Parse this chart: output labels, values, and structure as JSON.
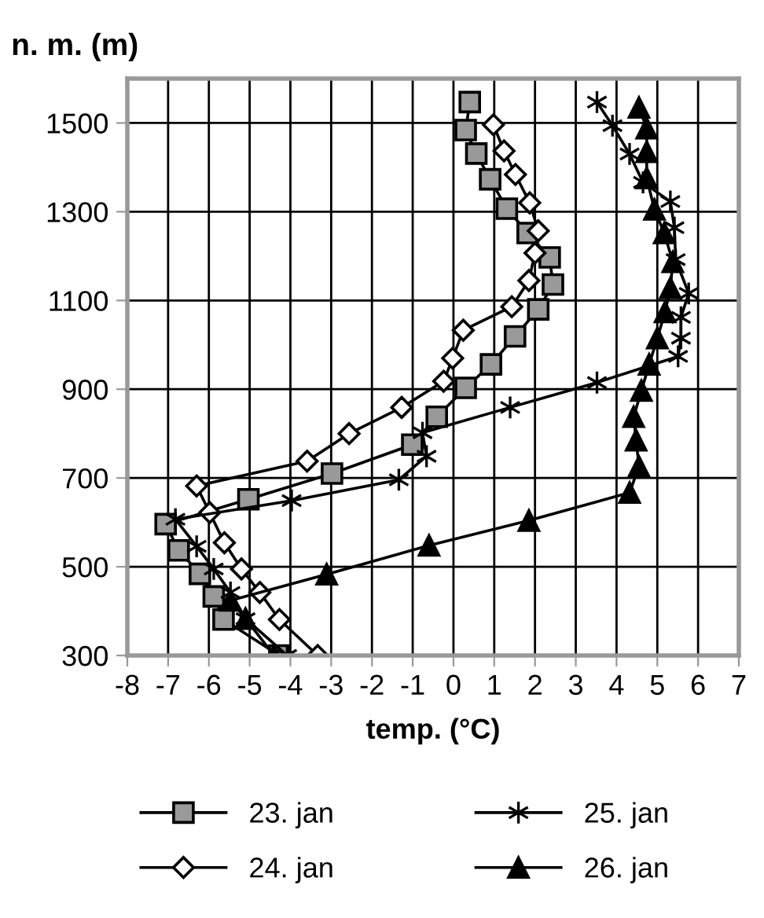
{
  "chart_data": {
    "type": "line",
    "xlabel": "temp. (°C)",
    "ylabel": "n. m. (m)",
    "xlim": [
      -8,
      7
    ],
    "xticks": [
      -8,
      -7,
      -6,
      -5,
      -4,
      -3,
      -2,
      -1,
      0,
      1,
      2,
      3,
      4,
      5,
      6,
      7
    ],
    "ylim": [
      300,
      1600
    ],
    "yticks": [
      300,
      500,
      700,
      900,
      1100,
      1300,
      1500
    ],
    "grid": true,
    "legend": "bottom",
    "series": [
      {
        "name": "23. jan",
        "color": "#999999",
        "marker": "square",
        "x": [
          0.4,
          0.3,
          0.56,
          0.9,
          1.31,
          1.82,
          2.36,
          2.44,
          2.08,
          1.51,
          0.92,
          0.3,
          -0.41,
          -1.01,
          -2.98,
          -5.03,
          -7.06,
          -6.74,
          -6.22,
          -5.88,
          -5.64,
          -4.27
        ],
        "values": [
          1547,
          1484,
          1431,
          1373,
          1307,
          1252,
          1197,
          1136,
          1080,
          1019,
          956,
          903,
          838,
          775,
          710,
          652,
          596,
          537,
          484,
          433,
          381,
          300
        ]
      },
      {
        "name": "24. jan",
        "color": "#ffffff",
        "marker": "diamond",
        "x": [
          0.98,
          1.24,
          1.52,
          1.87,
          2.08,
          2.0,
          1.85,
          1.43,
          0.24,
          -0.02,
          -0.24,
          -1.27,
          -2.56,
          -3.59,
          -6.3,
          -5.98,
          -5.62,
          -5.2,
          -4.75,
          -4.27,
          -3.33
        ],
        "values": [
          1496,
          1437,
          1384,
          1320,
          1257,
          1207,
          1145,
          1086,
          1033,
          970,
          918,
          859,
          800,
          738,
          682,
          622,
          554,
          495,
          442,
          381,
          300
        ]
      },
      {
        "name": "25. jan",
        "color": "#000000",
        "marker": "cross",
        "x": [
          3.52,
          3.9,
          4.32,
          4.65,
          5.32,
          5.42,
          5.45,
          5.77,
          5.58,
          5.58,
          5.51,
          3.52,
          1.39,
          -0.76,
          -0.66,
          -1.34,
          -3.97,
          -6.82,
          -6.3,
          -5.88,
          -5.47,
          -5.1,
          -4.08
        ],
        "values": [
          1547,
          1494,
          1430,
          1366,
          1323,
          1264,
          1192,
          1116,
          1062,
          1015,
          974,
          915,
          859,
          802,
          749,
          696,
          649,
          607,
          546,
          495,
          442,
          383,
          300
        ]
      },
      {
        "name": "26. jan",
        "color": "#000000",
        "marker": "triangle",
        "x": [
          4.55,
          4.74,
          4.74,
          4.74,
          4.93,
          5.17,
          5.38,
          5.32,
          5.19,
          5.0,
          4.8,
          4.61,
          4.42,
          4.48,
          4.55,
          4.32,
          1.85,
          -0.6,
          -3.11,
          -5.47,
          -5.1,
          -4.4
        ],
        "values": [
          1535,
          1488,
          1435,
          1376,
          1305,
          1252,
          1187,
          1128,
          1074,
          1015,
          956,
          897,
          838,
          785,
          726,
          667,
          604,
          548,
          483,
          424,
          383,
          300
        ]
      }
    ]
  }
}
